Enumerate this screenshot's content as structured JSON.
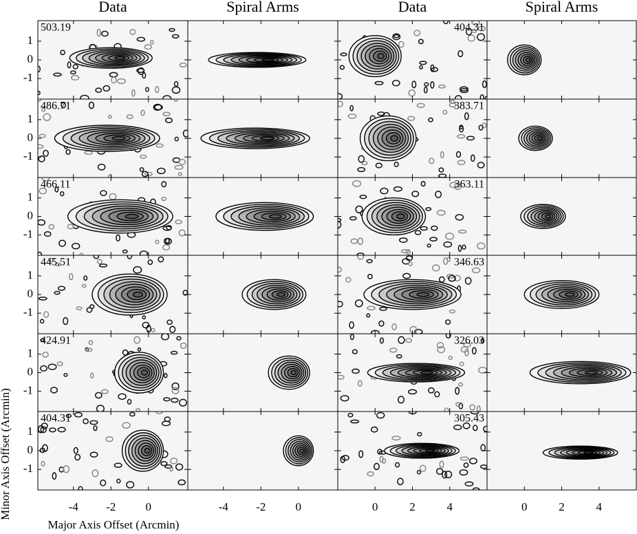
{
  "chart_data": {
    "type": "contour",
    "column_titles": [
      "Data",
      "Spiral Arms",
      "Data",
      "Spiral Arms"
    ],
    "left_velocities": [
      "503.19",
      "486.71",
      "466.11",
      "445.51",
      "424.91",
      "404.31"
    ],
    "right_velocities": [
      "404.31",
      "383.71",
      "363.11",
      "346.63",
      "326.03",
      "305.43"
    ],
    "xlabel": "Major Axis Offset (Arcmin)",
    "ylabel": "Minor Axis Offset (Arcmin)",
    "left_xlim": [
      -5.9,
      2.1
    ],
    "left_xticks": [
      -4,
      -2,
      0
    ],
    "right_xlim": [
      -2,
      6
    ],
    "right_xticks": [
      0,
      2,
      4
    ],
    "ylim": [
      -2.1,
      2.1
    ],
    "yticks": [
      -1,
      0,
      1
    ]
  }
}
